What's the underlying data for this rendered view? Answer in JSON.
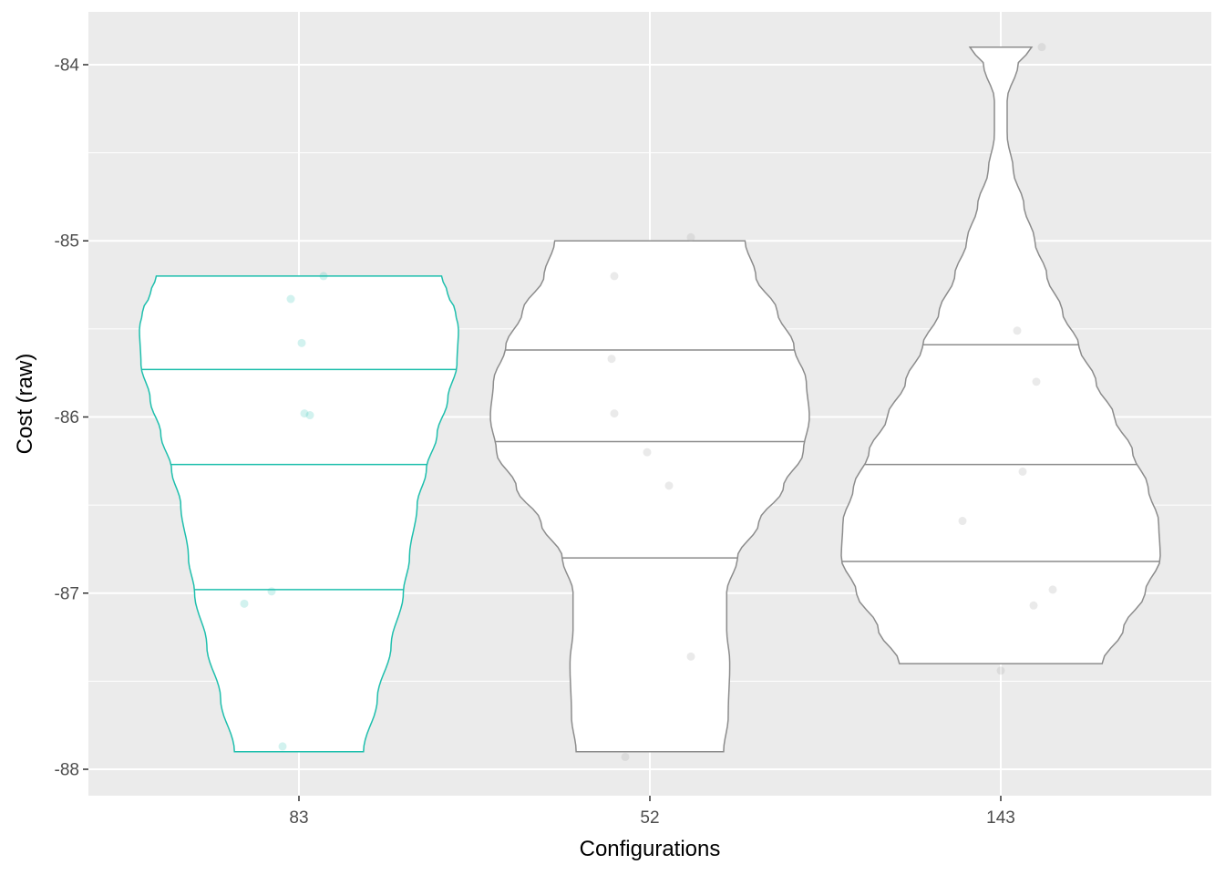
{
  "chart_data": {
    "type": "violin",
    "xlabel": "Configurations",
    "ylabel": "Cost (raw)",
    "categories": [
      "83",
      "52",
      "143"
    ],
    "ylim": [
      -88.15,
      -83.7
    ],
    "yticks": [
      -84,
      -85,
      -86,
      -87,
      -88
    ],
    "ytick_labels": [
      "-84",
      "-85",
      "-86",
      "-87",
      "-88"
    ],
    "grid": true,
    "background": "#ebebeb",
    "grid_color": "#ffffff",
    "highlight_color": "#1fbfad",
    "default_color": "#8c8c8c",
    "highlighted_category": "83",
    "violins": [
      {
        "category": "83",
        "highlight": true,
        "ymin": -87.9,
        "ymax": -85.2,
        "quantiles": [
          -85.73,
          -86.27,
          -86.98
        ],
        "profile": [
          [
            -87.9,
            0.38
          ],
          [
            -87.6,
            0.47
          ],
          [
            -87.3,
            0.56
          ],
          [
            -87.0,
            0.64
          ],
          [
            -86.8,
            0.68
          ],
          [
            -86.5,
            0.73
          ],
          [
            -86.3,
            0.79
          ],
          [
            -86.1,
            0.86
          ],
          [
            -85.9,
            0.93
          ],
          [
            -85.7,
            0.99
          ],
          [
            -85.5,
            1.0
          ],
          [
            -85.4,
            0.98
          ],
          [
            -85.3,
            0.93
          ],
          [
            -85.2,
            0.89
          ]
        ],
        "points": [
          -85.2,
          -85.33,
          -85.58,
          -85.98,
          -85.99,
          -86.99,
          -87.06,
          -87.87
        ],
        "jitter": [
          0.09,
          -0.03,
          0.01,
          0.02,
          0.04,
          -0.1,
          -0.2,
          -0.06
        ]
      },
      {
        "category": "52",
        "highlight": false,
        "ymin": -87.9,
        "ymax": -85.0,
        "quantiles": [
          -85.62,
          -86.14,
          -86.8
        ],
        "profile": [
          [
            -87.9,
            0.44
          ],
          [
            -87.7,
            0.47
          ],
          [
            -87.4,
            0.48
          ],
          [
            -87.2,
            0.46
          ],
          [
            -87.0,
            0.46
          ],
          [
            -86.8,
            0.53
          ],
          [
            -86.6,
            0.67
          ],
          [
            -86.4,
            0.83
          ],
          [
            -86.2,
            0.96
          ],
          [
            -86.0,
            1.0
          ],
          [
            -85.8,
            0.98
          ],
          [
            -85.6,
            0.9
          ],
          [
            -85.4,
            0.79
          ],
          [
            -85.2,
            0.65
          ],
          [
            -85.0,
            0.58
          ]
        ],
        "points": [
          -84.98,
          -85.2,
          -85.67,
          -85.98,
          -86.2,
          -86.39,
          -87.36,
          -87.93
        ],
        "jitter": [
          0.15,
          -0.13,
          -0.14,
          -0.13,
          -0.01,
          0.07,
          0.15,
          -0.09
        ]
      },
      {
        "category": "143",
        "highlight": false,
        "ymin": -87.4,
        "ymax": -83.9,
        "quantiles": [
          -85.59,
          -86.27,
          -86.82
        ],
        "profile": [
          [
            -87.4,
            0.62
          ],
          [
            -87.2,
            0.76
          ],
          [
            -87.0,
            0.9
          ],
          [
            -86.8,
            1.0
          ],
          [
            -86.6,
            0.99
          ],
          [
            -86.4,
            0.92
          ],
          [
            -86.2,
            0.82
          ],
          [
            -86.0,
            0.7
          ],
          [
            -85.8,
            0.58
          ],
          [
            -85.6,
            0.47
          ],
          [
            -85.4,
            0.36
          ],
          [
            -85.2,
            0.26
          ],
          [
            -85.0,
            0.18
          ],
          [
            -84.8,
            0.11
          ],
          [
            -84.6,
            0.04
          ],
          [
            -84.4,
            0.0
          ],
          [
            -84.2,
            0.0
          ],
          [
            -84.0,
            0.07
          ],
          [
            -83.9,
            0.16
          ]
        ],
        "points": [
          -83.9,
          -85.51,
          -85.8,
          -86.31,
          -86.59,
          -86.98,
          -87.07,
          -87.44
        ],
        "jitter": [
          0.15,
          0.06,
          0.13,
          0.08,
          -0.14,
          0.19,
          0.12,
          0.0
        ]
      }
    ]
  }
}
